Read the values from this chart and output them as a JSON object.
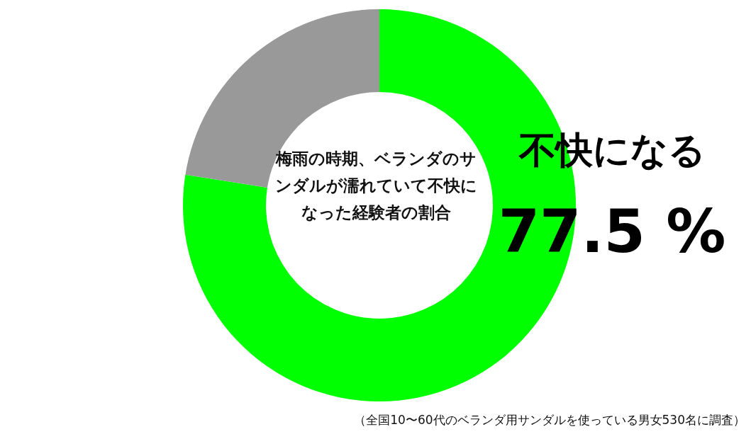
{
  "chart_data": {
    "type": "donut",
    "title": "梅雨の時期、ベランダのサンダルが濡れていて不快になった経験者の割合",
    "categories": [
      "不快になる",
      null
    ],
    "values": [
      77.5,
      22.5
    ],
    "colors": [
      "#00ff00",
      "#999999"
    ],
    "value_labels": [
      "77.5 %",
      null
    ],
    "annotations": [
      "（全国10〜60代のベランダ用サンダルを使っている男女530名に調査）"
    ]
  }
}
